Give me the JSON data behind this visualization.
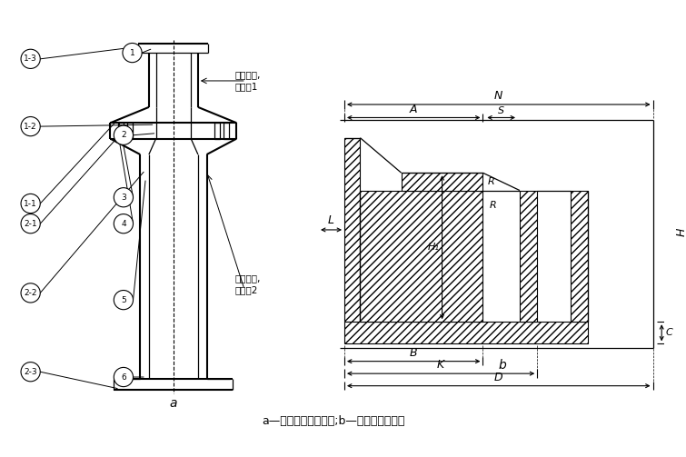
{
  "bg_color": "#ffffff",
  "caption": "a—不等管径对接法兰;b—法兰设计参数。",
  "ann_upper": "连接上件,\n编号为1",
  "ann_lower": "连接下件,\n编号为2",
  "label_a": "a",
  "label_b": "b"
}
